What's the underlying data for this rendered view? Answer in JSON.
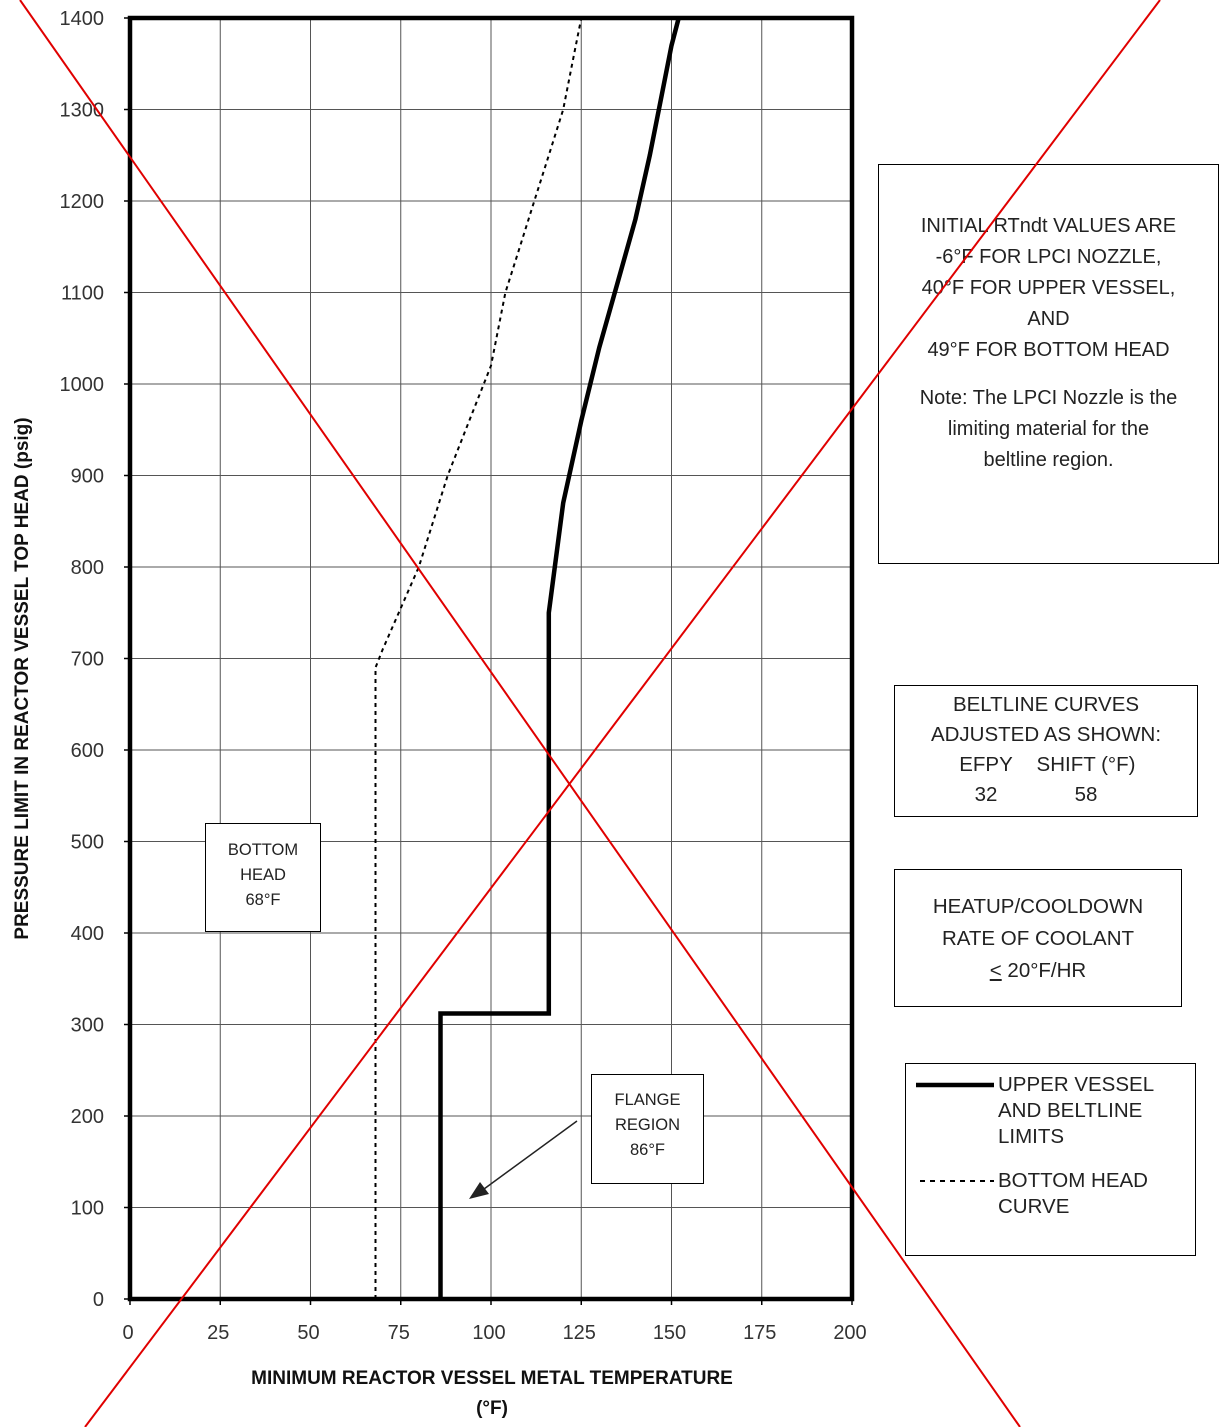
{
  "chart_data": {
    "type": "line",
    "title": "",
    "xlabel_line1": "MINIMUM REACTOR VESSEL METAL TEMPERATURE",
    "xlabel_line2": "(°F)",
    "ylabel": "PRESSURE LIMIT IN REACTOR VESSEL TOP HEAD (psig)",
    "xlim": [
      0,
      200
    ],
    "ylim": [
      0,
      1400
    ],
    "xticks": [
      0,
      25,
      50,
      75,
      100,
      125,
      150,
      175,
      200
    ],
    "yticks": [
      0,
      100,
      200,
      300,
      400,
      500,
      600,
      700,
      800,
      900,
      1000,
      1100,
      1200,
      1300,
      1400
    ],
    "grid": true,
    "legend_position": "lower-right",
    "series": [
      {
        "name": "UPPER VESSEL AND BELTLINE LIMITS",
        "style": "solid-thick",
        "color": "#000000",
        "x": [
          86,
          86,
          116,
          116,
          116,
          120,
          125,
          130,
          135,
          140,
          144,
          147,
          150,
          152
        ],
        "y": [
          0,
          312,
          312,
          312,
          750,
          870,
          960,
          1040,
          1110,
          1180,
          1250,
          1310,
          1370,
          1400
        ]
      },
      {
        "name": "BOTTOM HEAD CURVE",
        "style": "dashed",
        "color": "#000000",
        "x": [
          68,
          68,
          70,
          80,
          88,
          95,
          100,
          104,
          108,
          112,
          116,
          120,
          123,
          125
        ],
        "y": [
          0,
          690,
          710,
          800,
          900,
          970,
          1020,
          1100,
          1150,
          1200,
          1250,
          1300,
          1360,
          1400
        ]
      }
    ],
    "annotations": {
      "rtndt_lines": [
        "INITIAL RTndt VALUES ARE",
        "-6°F FOR LPCI NOZZLE,",
        "40°F FOR UPPER VESSEL,",
        "AND",
        "49°F FOR BOTTOM HEAD"
      ],
      "note_lines": [
        "Note:  The LPCI Nozzle is the",
        "limiting material for the",
        "beltline region."
      ],
      "beltline_lines": [
        "BELTLINE CURVES",
        "ADJUSTED AS SHOWN:"
      ],
      "efpy_header": "EFPY",
      "shift_header": "SHIFT (°F)",
      "efpy_value": "32",
      "shift_value": "58",
      "rate_line1": "HEATUP/COOLDOWN",
      "rate_line2": "RATE OF COOLANT",
      "rate_le": "<",
      "rate_value": " 20°F/HR",
      "bottom_head_lines": [
        "BOTTOM",
        "HEAD",
        "68°F"
      ],
      "flange_lines": [
        "FLANGE",
        "REGION",
        "86°F"
      ]
    },
    "legend": {
      "upper_lines": [
        "UPPER VESSEL",
        "AND BELTLINE",
        "LIMITS"
      ],
      "bottom_lines": [
        "BOTTOM HEAD",
        "CURVE"
      ]
    },
    "overlay_color": "#e00000"
  }
}
